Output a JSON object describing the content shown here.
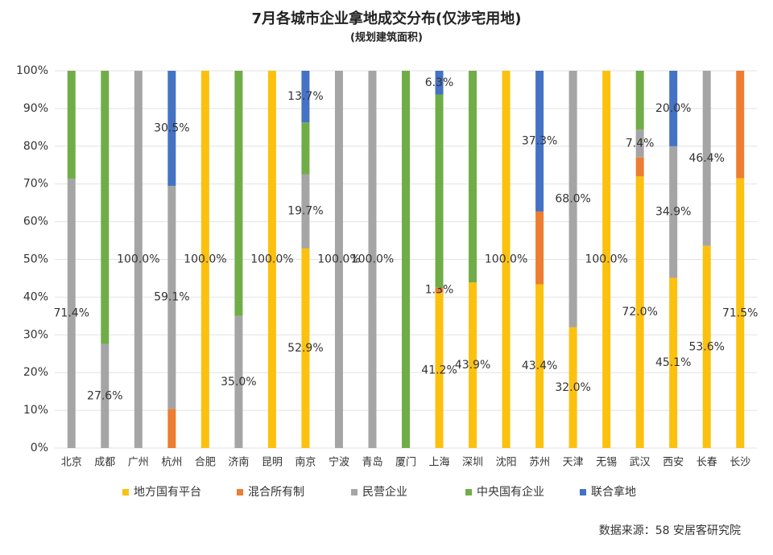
{
  "chart_data": {
    "type": "stacked_bar",
    "title": "7月各城市企业拿地成交分布(仅涉宅用地)",
    "subtitle": "(规划建筑面积)",
    "source": "数据来源：58 安居客研究院",
    "categories": [
      "北京",
      "成都",
      "广州",
      "杭州",
      "合肥",
      "济南",
      "昆明",
      "南京",
      "宁波",
      "青岛",
      "厦门",
      "上海",
      "深圳",
      "沈阳",
      "苏州",
      "天津",
      "无锡",
      "武汉",
      "西安",
      "长春",
      "长沙"
    ],
    "series": [
      {
        "name": "地方国有平台",
        "color": "#fbc10e",
        "values": [
          0,
          0,
          0,
          0,
          100,
          0,
          100,
          52.9,
          0,
          0,
          0,
          41.2,
          43.9,
          100,
          43.4,
          32.0,
          100,
          72.0,
          45.1,
          53.6,
          71.5
        ],
        "value_labels": [
          null,
          null,
          null,
          null,
          "100.0%",
          null,
          "100.0%",
          "52.9%",
          null,
          null,
          null,
          "41.2%",
          "43.9%",
          "100.0%",
          "43.4%",
          "32.0%",
          "100.0%",
          "72.0%",
          "45.1%",
          "53.6%",
          "71.5%"
        ]
      },
      {
        "name": "混合所有制",
        "color": "#ed7d31",
        "values": [
          0,
          0,
          0,
          10.4,
          0,
          0,
          0,
          0,
          0,
          0,
          0,
          1.3,
          0,
          0,
          19.3,
          0,
          0,
          5.0,
          0,
          0,
          28.5
        ],
        "value_labels": [
          null,
          null,
          null,
          null,
          null,
          null,
          null,
          null,
          null,
          null,
          null,
          "1.3%",
          null,
          null,
          null,
          null,
          null,
          null,
          null,
          null,
          null
        ]
      },
      {
        "name": "民营企业",
        "color": "#a5a5a5",
        "values": [
          71.4,
          27.6,
          100,
          59.1,
          0,
          35.0,
          0,
          19.7,
          100,
          100,
          0,
          0,
          0,
          0,
          0,
          68.0,
          0,
          7.4,
          34.9,
          46.4,
          0
        ],
        "value_labels": [
          "71.4%",
          "27.6%",
          "100.0%",
          "59.1%",
          null,
          "35.0%",
          null,
          "19.7%",
          "100.0%",
          "100.0%",
          null,
          null,
          null,
          null,
          null,
          "68.0%",
          null,
          "7.4%",
          "34.9%",
          "46.4%",
          null
        ]
      },
      {
        "name": "中央国有企业",
        "color": "#70ad47",
        "values": [
          28.6,
          72.4,
          0,
          0,
          0,
          65.0,
          0,
          13.7,
          0,
          0,
          100,
          51.2,
          56.1,
          0,
          0,
          0,
          0,
          15.6,
          0,
          0,
          0
        ]
      },
      {
        "name": "联合拿地",
        "color": "#4472c4",
        "values": [
          0,
          0,
          0,
          30.5,
          0,
          0,
          0,
          13.7,
          0,
          0,
          0,
          6.3,
          0,
          0,
          37.3,
          0,
          0,
          0,
          20.0,
          0,
          0
        ],
        "value_labels": [
          null,
          null,
          null,
          "30.5%",
          null,
          null,
          null,
          "13.7%",
          null,
          null,
          null,
          "6.3%",
          null,
          null,
          "37.3%",
          null,
          null,
          null,
          "20.0%",
          null,
          null
        ]
      }
    ],
    "ylim": [
      0,
      100
    ],
    "yticks": [
      {
        "value": 0,
        "label": "0%"
      },
      {
        "value": 10,
        "label": "10%"
      },
      {
        "value": 20,
        "label": "20%"
      },
      {
        "value": 30,
        "label": "30%"
      },
      {
        "value": 40,
        "label": "40%"
      },
      {
        "value": 50,
        "label": "50%"
      },
      {
        "value": 60,
        "label": "60%"
      },
      {
        "value": 70,
        "label": "70%"
      },
      {
        "value": 80,
        "label": "80%"
      },
      {
        "value": 90,
        "label": "90%"
      },
      {
        "value": 100,
        "label": "100%"
      }
    ],
    "grid": true
  }
}
